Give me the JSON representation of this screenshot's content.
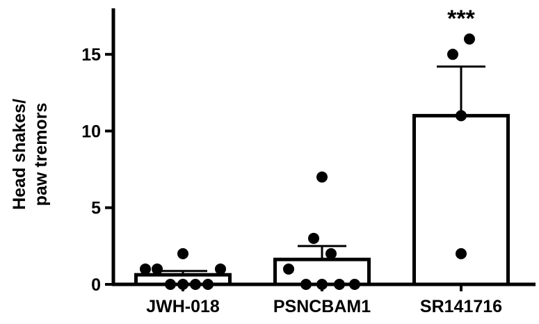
{
  "chart_data": {
    "type": "bar",
    "ylabel_lines": [
      "Head shakes/",
      "paw tremors"
    ],
    "xlabel": "",
    "ylim": [
      0,
      18
    ],
    "yticks": [
      0,
      5,
      10,
      15
    ],
    "grid": false,
    "categories": [
      "JWH-018",
      "PSNCBAM1",
      "SR141716"
    ],
    "means": [
      0.625,
      1.625,
      11
    ],
    "error_top": [
      0.87,
      2.5,
      14.2
    ],
    "points": [
      [
        2,
        1,
        1,
        1,
        0,
        0,
        0,
        0
      ],
      [
        7,
        3,
        2,
        1,
        0,
        0,
        0,
        0
      ],
      [
        16,
        15,
        11,
        2
      ]
    ],
    "annotations": [
      "",
      "",
      "***"
    ],
    "bar_fill": "#ffffff",
    "color": "#000000"
  }
}
